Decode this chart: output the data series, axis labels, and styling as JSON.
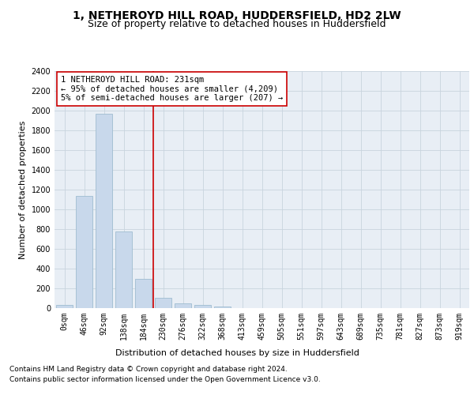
{
  "title_line1": "1, NETHEROYD HILL ROAD, HUDDERSFIELD, HD2 2LW",
  "title_line2": "Size of property relative to detached houses in Huddersfield",
  "xlabel": "Distribution of detached houses by size in Huddersfield",
  "ylabel": "Number of detached properties",
  "bar_color": "#c8d8eb",
  "bar_edge_color": "#a0bcd0",
  "categories": [
    "0sqm",
    "46sqm",
    "92sqm",
    "138sqm",
    "184sqm",
    "230sqm",
    "276sqm",
    "322sqm",
    "368sqm",
    "413sqm",
    "459sqm",
    "505sqm",
    "551sqm",
    "597sqm",
    "643sqm",
    "689sqm",
    "735sqm",
    "781sqm",
    "827sqm",
    "873sqm",
    "919sqm"
  ],
  "values": [
    35,
    1140,
    1970,
    780,
    300,
    105,
    50,
    35,
    20,
    0,
    0,
    0,
    0,
    0,
    0,
    0,
    0,
    0,
    0,
    0,
    0
  ],
  "ylim": [
    0,
    2400
  ],
  "yticks": [
    0,
    200,
    400,
    600,
    800,
    1000,
    1200,
    1400,
    1600,
    1800,
    2000,
    2200,
    2400
  ],
  "vline_color": "#cc0000",
  "annotation_text": "1 NETHEROYD HILL ROAD: 231sqm\n← 95% of detached houses are smaller (4,209)\n5% of semi-detached houses are larger (207) →",
  "footnote1": "Contains HM Land Registry data © Crown copyright and database right 2024.",
  "footnote2": "Contains public sector information licensed under the Open Government Licence v3.0.",
  "grid_color": "#c8d4de",
  "background_color": "#e8eef5",
  "annotation_box_color": "#ffffff",
  "annotation_box_edge": "#cc0000",
  "title_fontsize": 10,
  "subtitle_fontsize": 9,
  "axis_label_fontsize": 8,
  "tick_fontsize": 7,
  "annotation_fontsize": 7.5,
  "footnote_fontsize": 6.5
}
